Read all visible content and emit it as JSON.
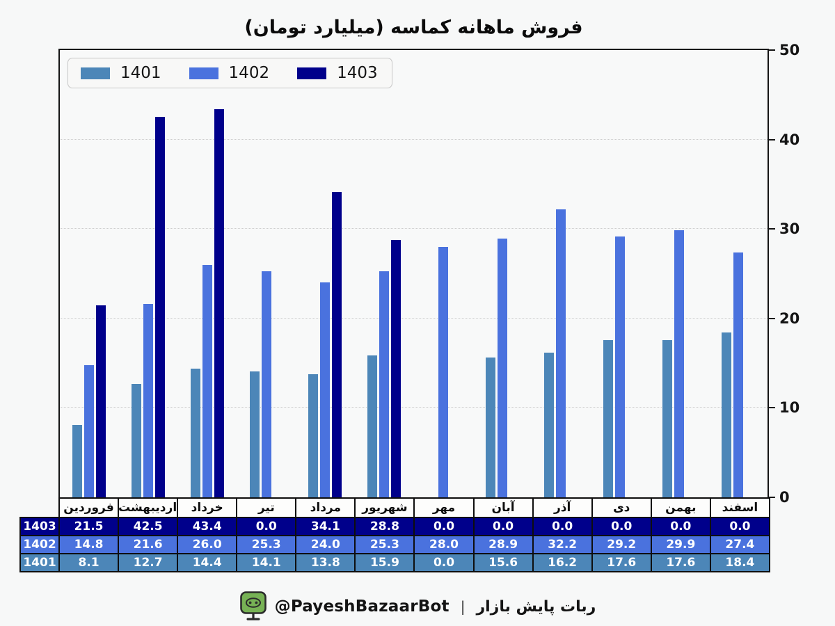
{
  "title": "فروش ماهانه کماسه (میلیارد تومان)",
  "legend": {
    "items": [
      {
        "label": "1401"
      },
      {
        "label": "1402"
      },
      {
        "label": "1403"
      }
    ]
  },
  "chart_data": {
    "type": "bar",
    "title": "فروش ماهانه کماسه (میلیارد تومان)",
    "categories": [
      "فروردین",
      "اردیبهشت",
      "خرداد",
      "تیر",
      "مرداد",
      "شهریور",
      "مهر",
      "آبان",
      "آذر",
      "دی",
      "بهمن",
      "اسفند"
    ],
    "series": [
      {
        "name": "1401",
        "color": "#4C86B8",
        "values": [
          8.1,
          12.7,
          14.4,
          14.1,
          13.8,
          15.9,
          0.0,
          15.6,
          16.2,
          17.6,
          17.6,
          18.4
        ]
      },
      {
        "name": "1402",
        "color": "#4A72DE",
        "values": [
          14.8,
          21.6,
          26.0,
          25.3,
          24.0,
          25.3,
          28.0,
          28.9,
          32.2,
          29.2,
          29.9,
          27.4
        ]
      },
      {
        "name": "1403",
        "color": "#00008B",
        "values": [
          21.5,
          42.5,
          43.4,
          0.0,
          34.1,
          28.8,
          0.0,
          0.0,
          0.0,
          0.0,
          0.0,
          0.0
        ]
      }
    ],
    "xlabel": "",
    "ylabel": "",
    "ylim": [
      0,
      50
    ],
    "yticks": [
      0,
      10,
      20,
      30,
      40,
      50
    ],
    "grid": "horizontal-dotted",
    "legend_position": "upper-left"
  },
  "table": {
    "row_order": [
      "1403",
      "1402",
      "1401"
    ],
    "value_decimals": 1
  },
  "colors": {
    "series_1401": "#4C86B8",
    "series_1402": "#4A72DE",
    "series_1403": "#00008B",
    "background": "#f7f8f8",
    "axis": "#141414",
    "gridline": "#cdcdcd",
    "table_border": "#0e0e0e",
    "table_header_bg": "#fdfdfc",
    "footer_icon_green": "#77b255"
  },
  "footer": {
    "icon": "robot-monitor-icon",
    "handle": "@PayeshBazaarBot",
    "separator": "|",
    "name": "ربات پایش بازار"
  }
}
